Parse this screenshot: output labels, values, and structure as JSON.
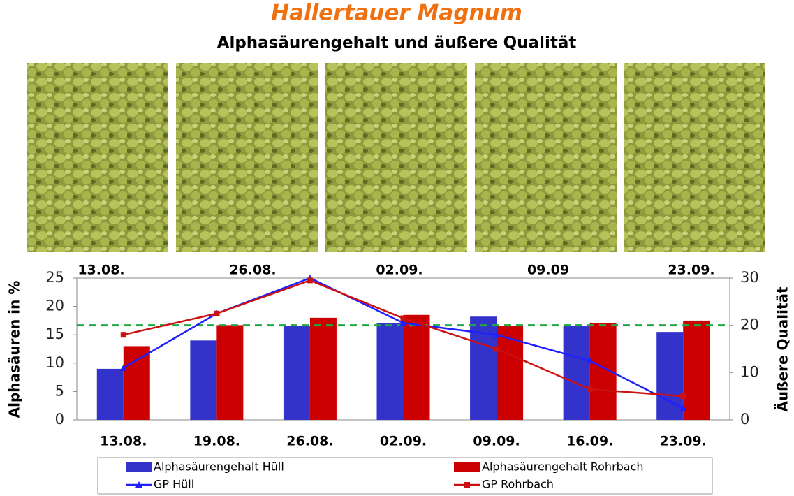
{
  "photos": {
    "labels": [
      "13.08.",
      "26.08.",
      "02.09.",
      "09.09",
      "23.09."
    ]
  },
  "chart_data": {
    "type": "bar",
    "title": "Hallertauer Magnum",
    "subtitle": "Alphasäurengehalt und äußere Qualität",
    "y_label": "Alphasäuren in %",
    "y2_label": "Äußere Qualität",
    "categories": [
      "13.08.",
      "19.08.",
      "26.08.",
      "02.09.",
      "09.09.",
      "16.09.",
      "23.09."
    ],
    "series": [
      {
        "name": "Alphasäurengehalt Hüll",
        "type": "bar",
        "color": "#3333cc",
        "values": [
          9,
          14,
          16.5,
          17,
          18.2,
          16.5,
          15.5
        ]
      },
      {
        "name": "Alphasäurengehalt Rohrbach",
        "type": "bar",
        "color": "#cc0000",
        "values": [
          13,
          16.7,
          18,
          18.5,
          16.5,
          17,
          17.5
        ]
      },
      {
        "name": "GP Hüll",
        "type": "line",
        "marker": "triangle",
        "axis": "y2",
        "color": "#1f1fff",
        "values": [
          11,
          22.5,
          30,
          20.5,
          18,
          12.5,
          2.5
        ]
      },
      {
        "name": "GP Rohrbach",
        "type": "line",
        "marker": "square",
        "axis": "y2",
        "color": "#cc1111",
        "values": [
          18,
          22.5,
          29.5,
          21.5,
          15,
          6.5,
          5
        ]
      }
    ],
    "ylim": [
      0,
      25
    ],
    "yticks": [
      0,
      5,
      10,
      15,
      20,
      25
    ],
    "y2lim": [
      0,
      30
    ],
    "y2ticks": [
      0,
      10,
      20,
      30
    ],
    "reference_line": {
      "value": 20,
      "axis": "y2",
      "color": "#22aa44"
    }
  }
}
